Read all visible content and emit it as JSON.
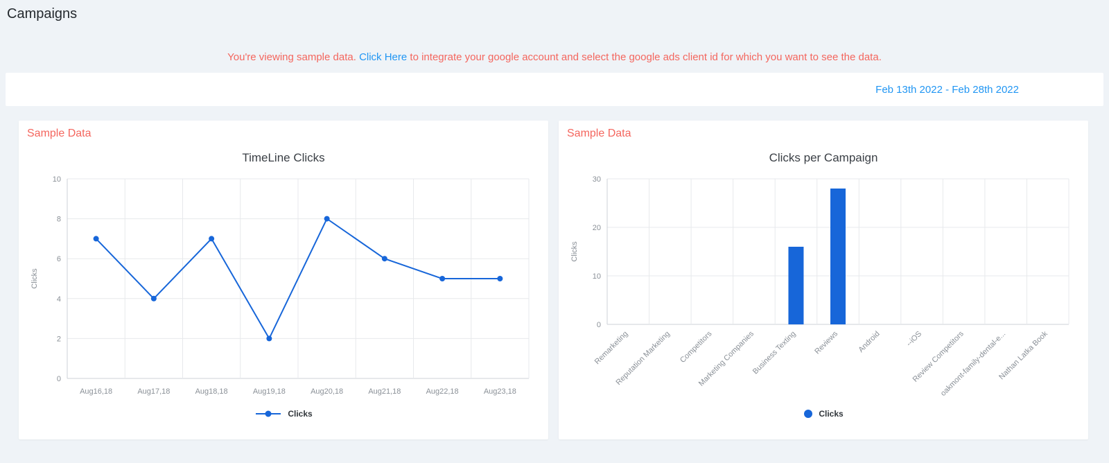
{
  "page": {
    "title": "Campaigns"
  },
  "notice": {
    "prefix": "You're viewing sample data.",
    "link_label": "Click Here",
    "suffix": "to integrate your google account and select the google ads client id for which you want to see the data."
  },
  "toolbar": {
    "date_range": "Feb 13th 2022 - Feb 28th 2022"
  },
  "cards": {
    "left": {
      "badge": "Sample Data"
    },
    "right": {
      "badge": "Sample Data"
    }
  },
  "colors": {
    "chart_blue": "#1766d9",
    "link_blue": "#2196f3",
    "notice_red": "#f4665e",
    "page_background": "#eff3f7"
  },
  "chart_data": [
    {
      "type": "line",
      "title": "TimeLine Clicks",
      "categories": [
        "Aug16,18",
        "Aug17,18",
        "Aug18,18",
        "Aug19,18",
        "Aug20,18",
        "Aug21,18",
        "Aug22,18",
        "Aug23,18"
      ],
      "series": [
        {
          "name": "Clicks",
          "values": [
            7,
            4,
            7,
            2,
            8,
            6,
            5,
            5
          ]
        }
      ],
      "xlabel": "",
      "ylabel": "Clicks",
      "ylim": [
        0,
        10
      ],
      "ytick_step": 2,
      "grid": true,
      "legend_position": "bottom",
      "color": "#1766d9"
    },
    {
      "type": "bar",
      "title": "Clicks per Campaign",
      "categories": [
        "Remarketing",
        "Reputation Marketing",
        "Competitors",
        "Marketing Companies",
        "Business Texting",
        "Reviews",
        "Android",
        "--iOS",
        "Review Competitors",
        "oakmont-family-dental-e...",
        "Nathan Latka Book"
      ],
      "series": [
        {
          "name": "Clicks",
          "values": [
            0,
            0,
            0,
            0,
            16,
            28,
            0,
            0,
            0,
            0,
            0
          ]
        }
      ],
      "xlabel": "",
      "ylabel": "Clicks",
      "ylim": [
        0,
        30
      ],
      "ytick_step": 10,
      "grid": true,
      "legend_position": "bottom",
      "color": "#1766d9"
    }
  ]
}
